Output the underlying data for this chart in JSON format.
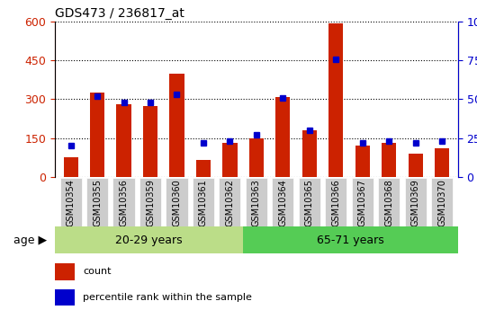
{
  "title": "GDS473 / 236817_at",
  "samples": [
    "GSM10354",
    "GSM10355",
    "GSM10356",
    "GSM10359",
    "GSM10360",
    "GSM10361",
    "GSM10362",
    "GSM10363",
    "GSM10364",
    "GSM10365",
    "GSM10366",
    "GSM10367",
    "GSM10368",
    "GSM10369",
    "GSM10370"
  ],
  "counts": [
    75,
    325,
    280,
    275,
    400,
    65,
    130,
    148,
    310,
    178,
    595,
    120,
    130,
    90,
    110
  ],
  "percentiles": [
    20,
    52,
    48,
    48,
    53,
    22,
    23,
    27,
    51,
    30,
    76,
    22,
    23,
    22,
    23
  ],
  "group1_label": "20-29 years",
  "group2_label": "65-71 years",
  "group1_count": 7,
  "group2_count": 8,
  "ylim_left": [
    0,
    600
  ],
  "ylim_right": [
    0,
    100
  ],
  "yticks_left": [
    0,
    150,
    300,
    450,
    600
  ],
  "yticks_right": [
    0,
    25,
    50,
    75,
    100
  ],
  "bar_color": "#cc2200",
  "dot_color": "#0000cc",
  "group1_bg": "#bbdd88",
  "group2_bg": "#55cc55",
  "tick_bg": "#cccccc",
  "legend_count_label": "count",
  "legend_pct_label": "percentile rank within the sample",
  "age_label": "age"
}
